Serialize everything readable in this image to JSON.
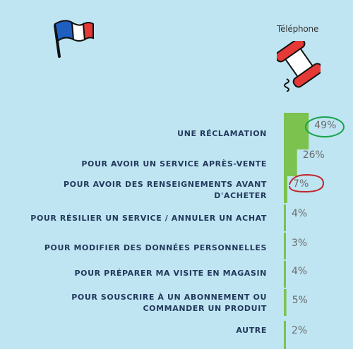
{
  "header": {
    "channel_label": "Téléphone"
  },
  "icons": {
    "flag": "french-flag-icon",
    "phone": "telephone-icon"
  },
  "colors": {
    "background": "#bfe5f3",
    "bar": "#7cc24f",
    "label": "#23395b",
    "highlight_green": "#19a34a",
    "highlight_red": "#c0282b"
  },
  "chart_data": {
    "type": "bar",
    "orientation": "horizontal",
    "categories": [
      "UNE RÉCLAMATION",
      "POUR AVOIR UN SERVICE APRÈS-VENTE",
      "POUR AVOIR DES RENSEIGNEMENTS AVANT D'ACHETER",
      "POUR RÉSILIER UN SERVICE / ANNULER UN ACHAT",
      "POUR MODIFIER DES DONNÉES PERSONNELLES",
      "POUR PRÉPARER MA VISITE EN MAGASIN",
      "POUR SOUSCRIRE À UN ABONNEMENT OU COMMANDER UN PRODUIT",
      "AUTRE"
    ],
    "values": [
      49,
      26,
      7,
      4,
      3,
      4,
      5,
      2
    ],
    "value_labels": [
      "49%",
      "26%",
      "7%",
      "4%",
      "3%",
      "4%",
      "5%",
      "2%"
    ],
    "circled": [
      "49%",
      "7%"
    ],
    "xlim": [
      0,
      100
    ]
  }
}
